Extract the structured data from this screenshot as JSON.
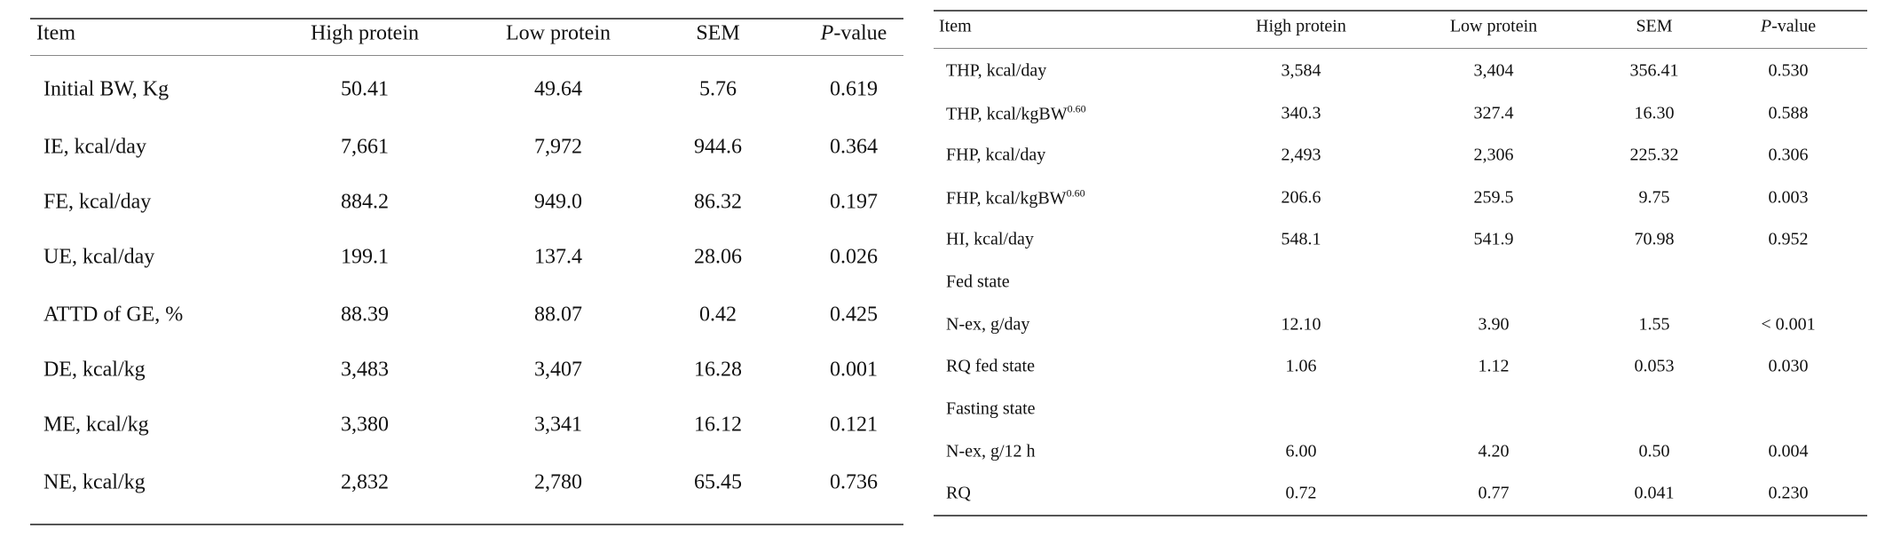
{
  "tables": [
    {
      "header": [
        "Item",
        "High protein",
        "Low protein",
        "SEM",
        {
          "italic": "P",
          "text": "-value"
        }
      ],
      "rows": [
        [
          "Initial BW, Kg",
          "50.41",
          "49.64",
          "5.76",
          "0.619"
        ],
        [
          "IE, kcal/day",
          "7,661",
          "7,972",
          "944.6",
          "0.364"
        ],
        [
          "FE, kcal/day",
          "884.2",
          "949.0",
          "86.32",
          "0.197"
        ],
        [
          "UE, kcal/day",
          "199.1",
          "137.4",
          "28.06",
          "0.026"
        ],
        [
          "ATTD of GE, %",
          "88.39",
          "88.07",
          "0.42",
          "0.425"
        ],
        [
          "DE, kcal/kg",
          "3,483",
          "3,407",
          "16.28",
          "0.001"
        ],
        [
          "ME, kcal/kg",
          "3,380",
          "3,341",
          "16.12",
          "0.121"
        ],
        [
          "NE, kcal/kg",
          "2,832",
          "2,780",
          "65.45",
          "0.736"
        ]
      ]
    },
    {
      "header": [
        "Item",
        "High protein",
        "Low protein",
        "SEM",
        {
          "italic": "P",
          "text": "-value"
        }
      ],
      "rows": [
        [
          "THP, kcal/day",
          "3,584",
          "3,404",
          "356.41",
          "0.530"
        ],
        [
          {
            "text": "THP, kcal/kgBW",
            "sup": "0.60"
          },
          "340.3",
          "327.4",
          "16.30",
          "0.588"
        ],
        [
          "FHP, kcal/day",
          "2,493",
          "2,306",
          "225.32",
          "0.306"
        ],
        [
          {
            "text": "FHP, kcal/kgBW",
            "sup": "0.60"
          },
          "206.6",
          "259.5",
          "9.75",
          "0.003"
        ],
        [
          "HI, kcal/day",
          "548.1",
          "541.9",
          "70.98",
          "0.952"
        ],
        [
          "Fed state"
        ],
        [
          "N-ex, g/day",
          "12.10",
          "3.90",
          "1.55",
          "< 0.001"
        ],
        [
          "RQ fed state",
          "1.06",
          "1.12",
          "0.053",
          "0.030"
        ],
        [
          "Fasting state"
        ],
        [
          "N-ex, g/12 h",
          "6.00",
          "4.20",
          "0.50",
          "0.004"
        ],
        [
          "RQ",
          "0.72",
          "0.77",
          "0.041",
          "0.230"
        ]
      ]
    }
  ]
}
